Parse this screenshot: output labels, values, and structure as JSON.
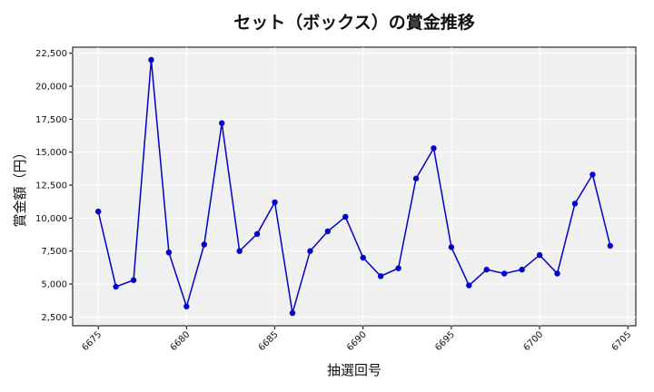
{
  "chart_data": {
    "type": "line",
    "title": "セット（ボックス）の賞金推移",
    "xlabel": "抽選回号",
    "ylabel": "賞金額（円）",
    "x": [
      6675,
      6676,
      6677,
      6678,
      6679,
      6680,
      6681,
      6682,
      6683,
      6684,
      6685,
      6686,
      6687,
      6688,
      6689,
      6690,
      6691,
      6692,
      6693,
      6694,
      6695,
      6696,
      6697,
      6698,
      6699,
      6700,
      6701,
      6702,
      6703,
      6704
    ],
    "series": [
      {
        "values": [
          10500,
          4800,
          5300,
          22000,
          7400,
          3300,
          8000,
          17200,
          7500,
          8800,
          11200,
          2800,
          7500,
          9000,
          10100,
          7000,
          5600,
          6200,
          13000,
          15300,
          7800,
          4900,
          6100,
          5800,
          6100,
          7200,
          5800,
          11100,
          13300,
          7900
        ],
        "color": "#0000cc"
      }
    ],
    "xlim": [
      6673.55,
      6705.45
    ],
    "ylim": [
      1840,
      22960
    ],
    "xticks": [
      6675,
      6680,
      6685,
      6690,
      6695,
      6700,
      6705
    ],
    "xtick_labels": [
      "6675",
      "6680",
      "6685",
      "6690",
      "6695",
      "6700",
      "6705"
    ],
    "yticks": [
      2500,
      5000,
      7500,
      10000,
      12500,
      15000,
      17500,
      20000,
      22500
    ],
    "ytick_labels": [
      "2,500",
      "5,000",
      "7,500",
      "10,000",
      "12,500",
      "15,000",
      "17,500",
      "20,000",
      "22,500"
    ],
    "grid": true,
    "legend": "none",
    "plot_background": "#f0f0f0",
    "grid_color": "#ffffff"
  }
}
